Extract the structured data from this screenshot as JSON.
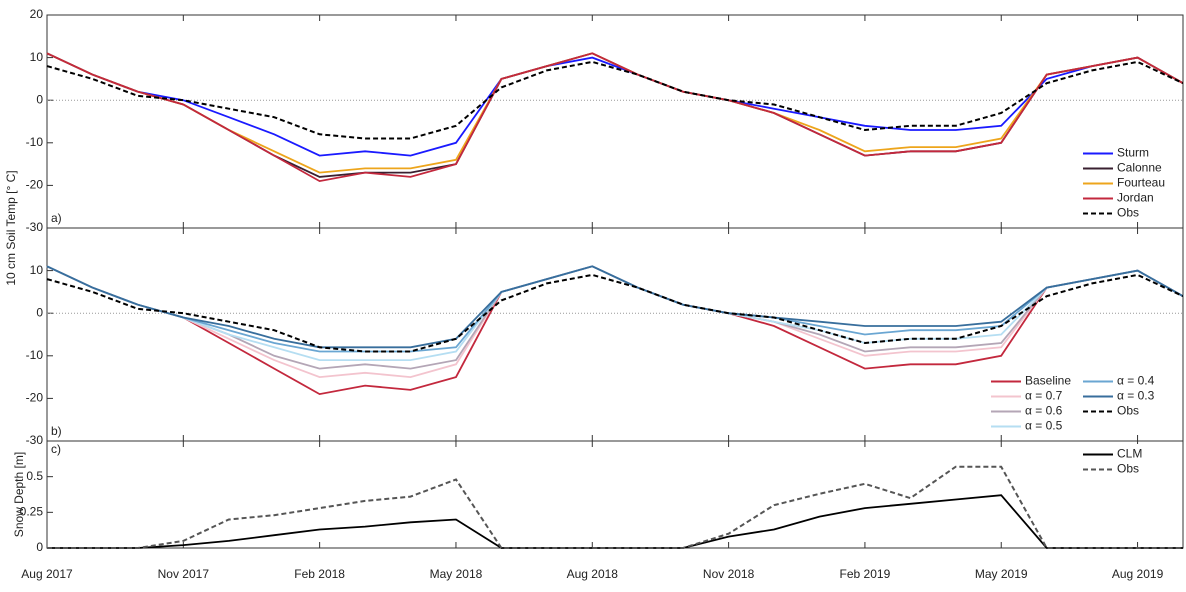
{
  "chart_data": [
    {
      "type": "line",
      "panel_label": "a)",
      "ylabel": "10 cm Soil Temp [° C]",
      "x": [
        "2017-08",
        "2017-09",
        "2017-10",
        "2017-11",
        "2017-12",
        "2018-01",
        "2018-02",
        "2018-03",
        "2018-04",
        "2018-05",
        "2018-06",
        "2018-07",
        "2018-08",
        "2018-09",
        "2018-10",
        "2018-11",
        "2018-12",
        "2019-01",
        "2019-02",
        "2019-03",
        "2019-04",
        "2019-05",
        "2019-06",
        "2019-07",
        "2019-08",
        "2019-09"
      ],
      "xlim": [
        "2017-08",
        "2019-09"
      ],
      "ylim": [
        -30,
        20
      ],
      "yticks": [
        -30,
        -20,
        -10,
        0,
        10,
        20
      ],
      "zero_line": true,
      "legend": "lower right",
      "legend_columns": 1,
      "series": [
        {
          "name": "Sturm",
          "color": "#1a1aff",
          "style": "solid",
          "values": [
            11,
            6,
            2,
            0,
            -4,
            -8,
            -13,
            -12,
            -13,
            -10,
            5,
            8,
            10,
            6,
            2,
            0,
            -2,
            -4,
            -6,
            -7,
            -7,
            -6,
            5,
            8,
            10,
            4
          ]
        },
        {
          "name": "Calonne",
          "color": "#3a2030",
          "style": "solid",
          "values": [
            11,
            6,
            2,
            -1,
            -7,
            -13,
            -18,
            -17,
            -17,
            -15,
            5,
            8,
            11,
            6,
            2,
            0,
            -3,
            -8,
            -13,
            -12,
            -12,
            -10,
            6,
            8,
            10,
            4
          ]
        },
        {
          "name": "Fourteau",
          "color": "#eda51c",
          "style": "solid",
          "values": [
            11,
            6,
            2,
            -1,
            -7,
            -12,
            -17,
            -16,
            -16,
            -14,
            5,
            8,
            11,
            6,
            2,
            0,
            -3,
            -7,
            -12,
            -11,
            -11,
            -9,
            6,
            8,
            10,
            4
          ]
        },
        {
          "name": "Jordan",
          "color": "#c3283d",
          "style": "solid",
          "values": [
            11,
            6,
            2,
            -1,
            -7,
            -13,
            -19,
            -17,
            -18,
            -15,
            5,
            8,
            11,
            6,
            2,
            0,
            -3,
            -8,
            -13,
            -12,
            -12,
            -10,
            6,
            8,
            10,
            4
          ]
        },
        {
          "name": "Obs",
          "color": "#000000",
          "style": "dashed",
          "values": [
            8,
            5,
            1,
            0,
            -2,
            -4,
            -8,
            -9,
            -9,
            -6,
            3,
            7,
            9,
            6,
            2,
            0,
            -1,
            -4,
            -7,
            -6,
            -6,
            -3,
            4,
            7,
            9,
            4
          ]
        }
      ]
    },
    {
      "type": "line",
      "panel_label": "b)",
      "x": [
        "2017-08",
        "2017-09",
        "2017-10",
        "2017-11",
        "2017-12",
        "2018-01",
        "2018-02",
        "2018-03",
        "2018-04",
        "2018-05",
        "2018-06",
        "2018-07",
        "2018-08",
        "2018-09",
        "2018-10",
        "2018-11",
        "2018-12",
        "2019-01",
        "2019-02",
        "2019-03",
        "2019-04",
        "2019-05",
        "2019-06",
        "2019-07",
        "2019-08",
        "2019-09"
      ],
      "xlim": [
        "2017-08",
        "2019-09"
      ],
      "ylim": [
        -30,
        20
      ],
      "yticks": [
        -30,
        -20,
        -10,
        0,
        10
      ],
      "zero_line": true,
      "legend": "lower right",
      "legend_columns": 2,
      "series": [
        {
          "name": "Baseline",
          "color": "#c3283d",
          "style": "solid",
          "values": [
            11,
            6,
            2,
            -1,
            -7,
            -13,
            -19,
            -17,
            -18,
            -15,
            5,
            8,
            11,
            6,
            2,
            0,
            -3,
            -8,
            -13,
            -12,
            -12,
            -10,
            6,
            8,
            10,
            4
          ]
        },
        {
          "name": "α = 0.7",
          "color": "#f3c4ce",
          "style": "solid",
          "values": [
            11,
            6,
            2,
            -1,
            -6,
            -11,
            -15,
            -14,
            -15,
            -12,
            5,
            8,
            11,
            6,
            2,
            0,
            -2,
            -6,
            -10,
            -9,
            -9,
            -8,
            6,
            8,
            10,
            4
          ]
        },
        {
          "name": "α = 0.6",
          "color": "#b4a6b6",
          "style": "solid",
          "values": [
            11,
            6,
            2,
            -1,
            -5,
            -10,
            -13,
            -12,
            -13,
            -11,
            5,
            8,
            11,
            6,
            2,
            0,
            -2,
            -5,
            -9,
            -8,
            -8,
            -7,
            6,
            8,
            10,
            4
          ]
        },
        {
          "name": "α = 0.5",
          "color": "#b5def2",
          "style": "solid",
          "values": [
            11,
            6,
            2,
            -1,
            -5,
            -8,
            -11,
            -11,
            -11,
            -9,
            5,
            8,
            11,
            6,
            2,
            0,
            -2,
            -4,
            -7,
            -6,
            -6,
            -5,
            6,
            8,
            10,
            4
          ]
        },
        {
          "name": "α = 0.4",
          "color": "#6aa6d2",
          "style": "solid",
          "values": [
            11,
            6,
            2,
            -1,
            -4,
            -7,
            -9,
            -9,
            -9,
            -8,
            5,
            8,
            11,
            6,
            2,
            0,
            -1,
            -3,
            -5,
            -4,
            -4,
            -3,
            6,
            8,
            10,
            4
          ]
        },
        {
          "name": "α = 0.3",
          "color": "#386e9c",
          "style": "solid",
          "values": [
            11,
            6,
            2,
            -1,
            -3,
            -6,
            -8,
            -8,
            -8,
            -6,
            5,
            8,
            11,
            6,
            2,
            0,
            -1,
            -2,
            -3,
            -3,
            -3,
            -2,
            6,
            8,
            10,
            4
          ]
        },
        {
          "name": "Obs",
          "color": "#000000",
          "style": "dashed",
          "values": [
            8,
            5,
            1,
            0,
            -2,
            -4,
            -8,
            -9,
            -9,
            -6,
            3,
            7,
            9,
            6,
            2,
            0,
            -1,
            -4,
            -7,
            -6,
            -6,
            -3,
            4,
            7,
            9,
            4
          ]
        }
      ]
    },
    {
      "type": "line",
      "panel_label": "c)",
      "ylabel": "Snow Depth [m]",
      "x": [
        "2017-08",
        "2017-09",
        "2017-10",
        "2017-11",
        "2017-12",
        "2018-01",
        "2018-02",
        "2018-03",
        "2018-04",
        "2018-05",
        "2018-06",
        "2018-07",
        "2018-08",
        "2018-09",
        "2018-10",
        "2018-11",
        "2018-12",
        "2019-01",
        "2019-02",
        "2019-03",
        "2019-04",
        "2019-05",
        "2019-06",
        "2019-07",
        "2019-08",
        "2019-09"
      ],
      "xlim": [
        "2017-08",
        "2019-09"
      ],
      "xticks": [
        {
          "value": "2017-08",
          "label": "Aug 2017"
        },
        {
          "value": "2017-11",
          "label": "Nov 2017"
        },
        {
          "value": "2018-02",
          "label": "Feb 2018"
        },
        {
          "value": "2018-05",
          "label": "May 2018"
        },
        {
          "value": "2018-08",
          "label": "Aug 2018"
        },
        {
          "value": "2018-11",
          "label": "Nov 2018"
        },
        {
          "value": "2019-02",
          "label": "Feb 2019"
        },
        {
          "value": "2019-05",
          "label": "May 2019"
        },
        {
          "value": "2019-08",
          "label": "Aug 2019"
        }
      ],
      "ylim": [
        0,
        0.75
      ],
      "yticks": [
        0,
        0.25,
        0.5
      ],
      "zero_line": false,
      "legend": "upper right",
      "legend_columns": 1,
      "series": [
        {
          "name": "CLM",
          "color": "#000000",
          "style": "solid",
          "values": [
            0,
            0,
            0,
            0.02,
            0.05,
            0.09,
            0.13,
            0.15,
            0.18,
            0.2,
            0,
            0,
            0,
            0,
            0,
            0.08,
            0.13,
            0.22,
            0.28,
            0.31,
            0.34,
            0.37,
            0,
            0,
            0,
            0
          ]
        },
        {
          "name": "Obs",
          "color": "#555555",
          "style": "dashed",
          "values": [
            0,
            0,
            0,
            0.05,
            0.2,
            0.23,
            0.28,
            0.33,
            0.36,
            0.48,
            0,
            0,
            0,
            0,
            0,
            0.1,
            0.3,
            0.38,
            0.45,
            0.35,
            0.57,
            0.57,
            0,
            0,
            0,
            0
          ]
        }
      ]
    }
  ]
}
